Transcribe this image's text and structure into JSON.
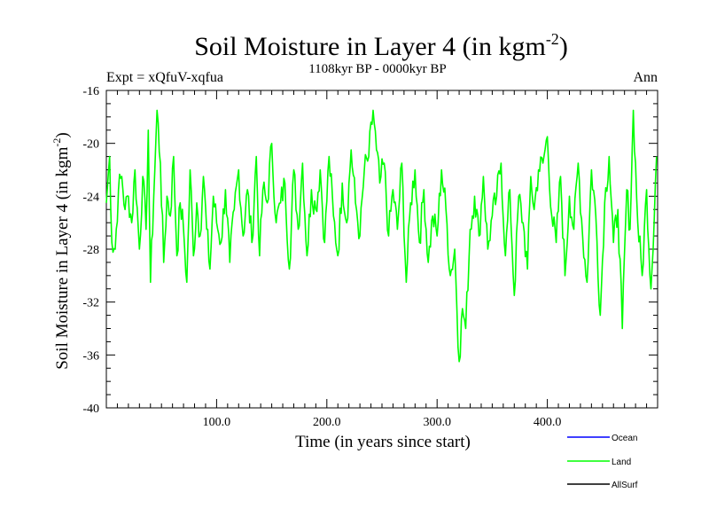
{
  "chart_data": {
    "type": "line",
    "title": "Soil Moisture in Layer 4 (in kgm",
    "title_sup": "-2",
    "title_close": ")",
    "subtitle": "1108kyr BP - 0000kyr BP",
    "left_label": "Expt = xQfuV-xqfua",
    "right_label": "Ann",
    "xlabel": "Time (in years since start)",
    "ylabel": "Soil Moisture in Layer 4 (in kgm",
    "ylabel_sup": "-2",
    "ylabel_close": ")",
    "xlim": [
      0,
      500
    ],
    "ylim": [
      -40,
      -16
    ],
    "x_ticks": [
      100,
      200,
      300,
      400
    ],
    "x_tick_labels": [
      "100.0",
      "200.0",
      "300.0",
      "400.0"
    ],
    "y_ticks": [
      -16,
      -20,
      -24,
      -28,
      -32,
      -36,
      -40
    ],
    "y_tick_labels": [
      "-16",
      "-20",
      "-24",
      "-28",
      "-32",
      "-36",
      "-40"
    ],
    "grid": false,
    "legend_position": "bottom-right",
    "series": [
      {
        "name": "Ocean",
        "color": "#0000ff",
        "x": [],
        "values": []
      },
      {
        "name": "Land",
        "color": "#00ff00",
        "x": [
          0,
          3,
          5,
          8,
          11,
          14,
          17,
          20,
          23,
          26,
          30,
          33,
          36,
          38,
          40,
          43,
          46,
          49,
          52,
          55,
          58,
          61,
          64,
          67,
          70,
          73,
          76,
          79,
          82,
          85,
          88,
          91,
          94,
          97,
          100,
          104,
          108,
          112,
          116,
          120,
          124,
          128,
          132,
          136,
          139,
          142,
          146,
          150,
          154,
          158,
          162,
          166,
          170,
          174,
          178,
          182,
          186,
          190,
          194,
          198,
          202,
          206,
          210,
          214,
          218,
          222,
          226,
          230,
          234,
          238,
          242,
          245,
          248,
          252,
          256,
          260,
          264,
          268,
          272,
          276,
          280,
          284,
          288,
          292,
          296,
          300,
          304,
          308,
          312,
          316,
          320,
          323,
          326,
          330,
          334,
          338,
          342,
          346,
          350,
          354,
          358,
          362,
          366,
          370,
          374,
          378,
          382,
          385,
          388,
          392,
          396,
          400,
          404,
          408,
          412,
          416,
          420,
          424,
          428,
          432,
          436,
          440,
          444,
          448,
          452,
          456,
          460,
          464,
          468,
          472,
          475,
          478,
          482,
          486,
          490,
          494,
          499
        ],
        "values": [
          -24.5,
          -21.0,
          -27.5,
          -28.0,
          -23.5,
          -22.5,
          -25.0,
          -24.0,
          -26.0,
          -22.0,
          -28.0,
          -22.5,
          -26.5,
          -19.0,
          -30.5,
          -24.0,
          -17.5,
          -21.5,
          -29.0,
          -24.0,
          -25.5,
          -21.0,
          -28.5,
          -24.5,
          -26.5,
          -30.5,
          -22.0,
          -28.5,
          -24.5,
          -27.0,
          -22.5,
          -26.5,
          -29.5,
          -24.0,
          -26.0,
          -27.5,
          -23.5,
          -29.0,
          -25.0,
          -22.0,
          -27.0,
          -23.5,
          -27.5,
          -21.0,
          -28.5,
          -23.5,
          -24.5,
          -20.0,
          -26.0,
          -24.5,
          -23.0,
          -29.5,
          -22.0,
          -26.5,
          -21.5,
          -28.5,
          -23.5,
          -25.0,
          -22.0,
          -27.5,
          -21.0,
          -25.5,
          -28.5,
          -23.0,
          -26.0,
          -20.5,
          -24.5,
          -27.0,
          -22.0,
          -21.0,
          -17.5,
          -20.5,
          -23.0,
          -21.5,
          -27.0,
          -23.5,
          -26.5,
          -21.5,
          -30.5,
          -24.5,
          -22.0,
          -27.5,
          -23.5,
          -29.0,
          -25.5,
          -27.0,
          -22.0,
          -25.0,
          -30.0,
          -28.0,
          -36.5,
          -32.5,
          -34.0,
          -26.5,
          -24.0,
          -27.0,
          -22.5,
          -28.0,
          -25.5,
          -24.0,
          -21.5,
          -28.5,
          -23.5,
          -31.5,
          -24.0,
          -26.0,
          -29.5,
          -22.5,
          -25.0,
          -22.0,
          -21.5,
          -19.5,
          -25.5,
          -27.5,
          -22.5,
          -30.0,
          -24.0,
          -26.5,
          -21.5,
          -27.0,
          -30.5,
          -22.0,
          -25.5,
          -33.0,
          -24.5,
          -21.0,
          -27.5,
          -25.0,
          -34.0,
          -23.5,
          -26.5,
          -17.5,
          -26.0,
          -30.0,
          -23.5,
          -31.0,
          -21.0
        ],
        "line_width_note": "thin"
      },
      {
        "name": "AllSurf",
        "color": "#000000",
        "x": [],
        "values": []
      }
    ]
  }
}
